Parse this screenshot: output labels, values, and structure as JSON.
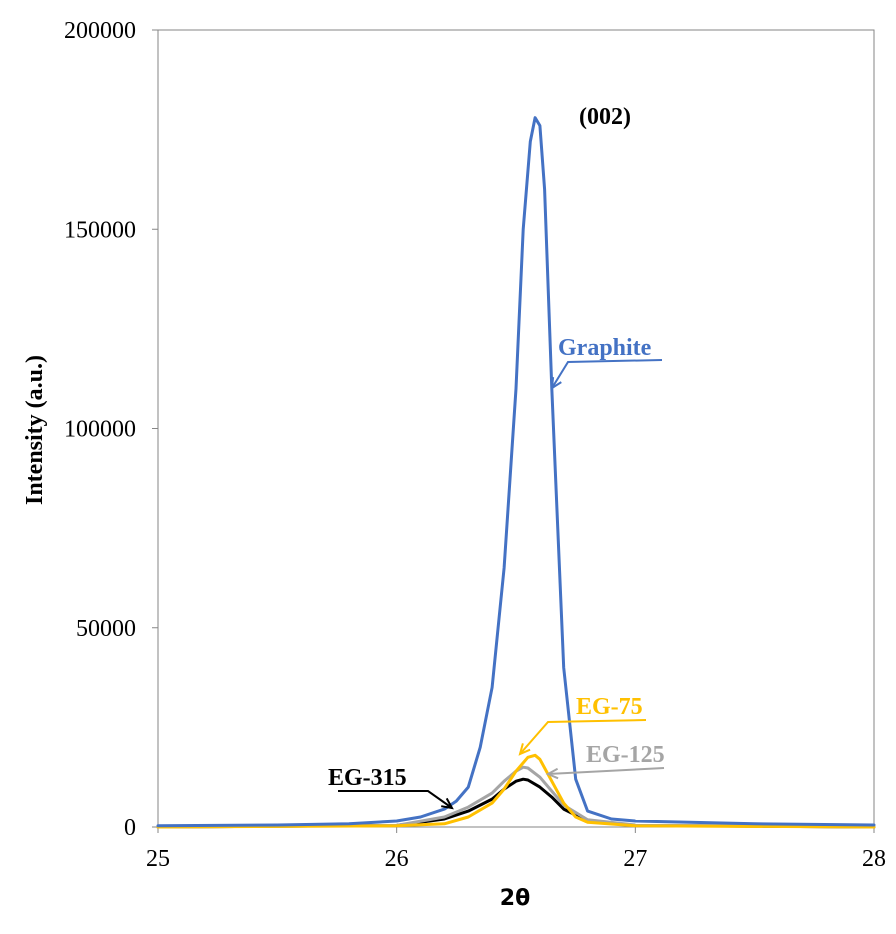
{
  "chart_data": {
    "type": "line",
    "title": "",
    "xlabel": "2θ",
    "ylabel": "Intensity (a.u.)",
    "xlim": [
      25,
      28
    ],
    "ylim": [
      0,
      200000
    ],
    "xticks": [
      25,
      26,
      27,
      28
    ],
    "yticks": [
      0,
      50000,
      100000,
      150000,
      200000
    ],
    "grid": false,
    "peak_label": "(002)",
    "series": [
      {
        "name": "Graphite",
        "color": "#4472C4",
        "x": [
          25.0,
          25.5,
          25.8,
          26.0,
          26.1,
          26.2,
          26.25,
          26.3,
          26.35,
          26.4,
          26.45,
          26.5,
          26.53,
          26.56,
          26.58,
          26.6,
          26.62,
          26.65,
          26.7,
          26.75,
          26.8,
          26.9,
          27.0,
          27.5,
          28.0
        ],
        "y": [
          300,
          500,
          800,
          1500,
          2500,
          4500,
          6500,
          10000,
          20000,
          35000,
          65000,
          110000,
          150000,
          172000,
          178000,
          176000,
          160000,
          110000,
          40000,
          12000,
          4000,
          2000,
          1500,
          800,
          500
        ]
      },
      {
        "name": "EG-75",
        "color": "#FFC000",
        "x": [
          25.0,
          26.0,
          26.2,
          26.3,
          26.4,
          26.45,
          26.5,
          26.55,
          26.58,
          26.6,
          26.65,
          26.7,
          26.75,
          26.8,
          27.0,
          28.0
        ],
        "y": [
          0,
          300,
          800,
          2500,
          6000,
          9500,
          14000,
          17500,
          18000,
          17000,
          11500,
          6000,
          2500,
          1200,
          300,
          0
        ]
      },
      {
        "name": "EG-125",
        "color": "#A5A5A5",
        "x": [
          25.0,
          26.0,
          26.2,
          26.3,
          26.4,
          26.45,
          26.5,
          26.53,
          26.55,
          26.6,
          26.65,
          26.7,
          26.8,
          27.0,
          28.0
        ],
        "y": [
          0,
          400,
          2500,
          5000,
          8500,
          11500,
          14000,
          15000,
          14800,
          12500,
          9000,
          5500,
          1800,
          500,
          0
        ]
      },
      {
        "name": "EG-315",
        "color": "#000000",
        "x": [
          25.0,
          26.0,
          26.2,
          26.3,
          26.4,
          26.45,
          26.5,
          26.53,
          26.55,
          26.6,
          26.65,
          26.7,
          26.8,
          27.0,
          28.0
        ],
        "y": [
          0,
          400,
          2000,
          4000,
          7000,
          9500,
          11500,
          12000,
          11800,
          10000,
          7500,
          4500,
          1500,
          400,
          0
        ]
      }
    ]
  }
}
